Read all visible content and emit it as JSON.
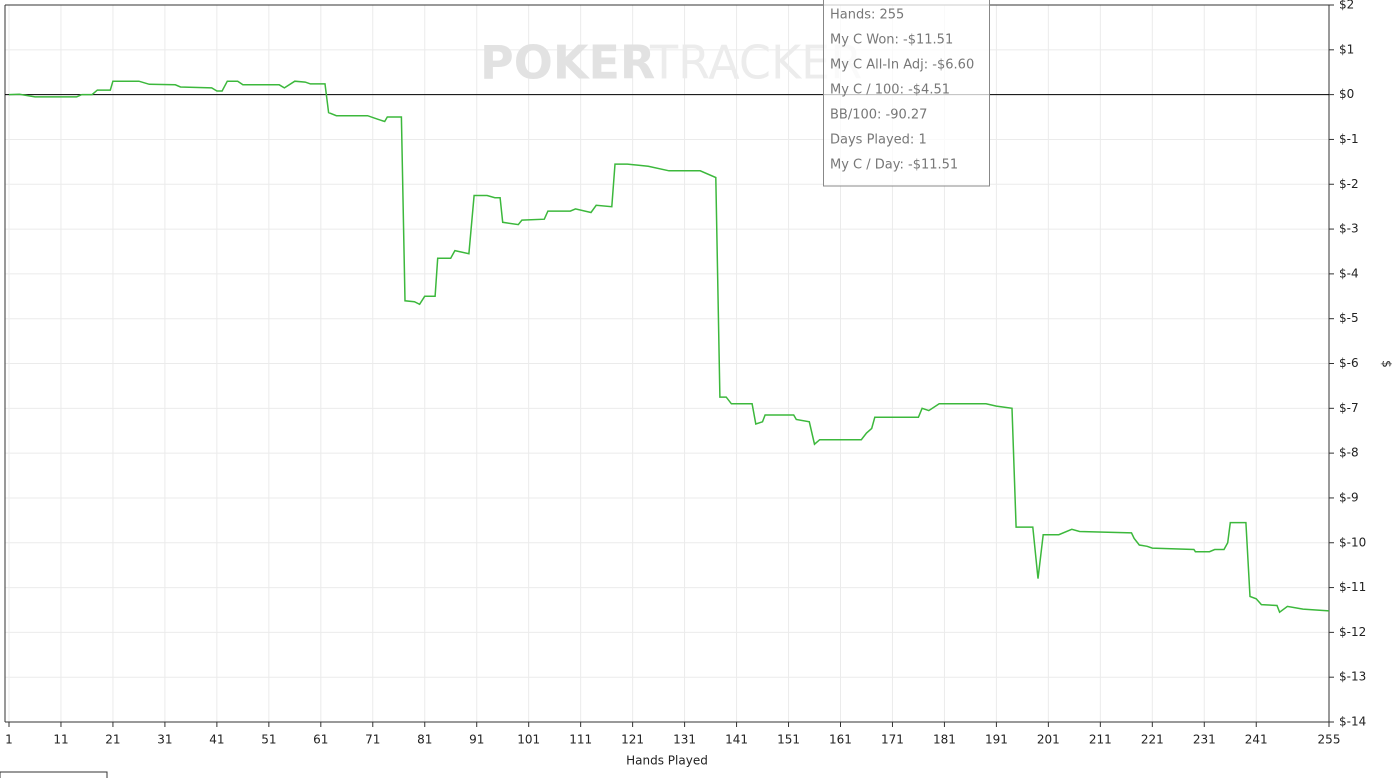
{
  "chart_data": {
    "type": "line",
    "x_label": "Hands Played",
    "y_label": "$",
    "watermark": {
      "bold": "POKER",
      "light": "TRACKER"
    },
    "tooltip": [
      "Hands: 255",
      "My C Won: -$11.51",
      "My C All-In Adj: -$6.60",
      "My C / 100: -$4.51",
      "BB/100: -90.27",
      "Days Played: 1",
      "My C / Day: -$11.51"
    ],
    "color": "#3cb83c",
    "grid": true,
    "zero_line": true,
    "xlim": [
      1,
      255
    ],
    "xticks": [
      1,
      11,
      21,
      31,
      41,
      51,
      61,
      71,
      81,
      91,
      101,
      111,
      121,
      131,
      141,
      151,
      161,
      171,
      181,
      191,
      201,
      211,
      221,
      231,
      241,
      255
    ],
    "ylim": [
      -14,
      2
    ],
    "yticks": [
      {
        "value": 2,
        "label": "$2"
      },
      {
        "value": 1,
        "label": "$1"
      },
      {
        "value": 0,
        "label": "$0"
      },
      {
        "value": -1,
        "label": "$-1"
      },
      {
        "value": -2,
        "label": "$-2"
      },
      {
        "value": -3,
        "label": "$-3"
      },
      {
        "value": -4,
        "label": "$-4"
      },
      {
        "value": -5,
        "label": "$-5"
      },
      {
        "value": -6,
        "label": "$-6"
      },
      {
        "value": -7,
        "label": "$-7"
      },
      {
        "value": -8,
        "label": "$-8"
      },
      {
        "value": -9,
        "label": "$-9"
      },
      {
        "value": -10,
        "label": "$-10"
      },
      {
        "value": -11,
        "label": "$-11"
      },
      {
        "value": -12,
        "label": "$-12"
      },
      {
        "value": -13,
        "label": "$-13"
      },
      {
        "value": -14,
        "label": "$-14"
      }
    ],
    "x": [
      1,
      3,
      6,
      14,
      15,
      17,
      18,
      20.5,
      21,
      26,
      28,
      33,
      34,
      40,
      41,
      42,
      43,
      45,
      46,
      53,
      54,
      56,
      58,
      59,
      61.8,
      62.5,
      64,
      70,
      72,
      73.3,
      73.8,
      76.5,
      77.2,
      79,
      80,
      81,
      83,
      83.5,
      86,
      86.8,
      89.5,
      90.5,
      93,
      94.5,
      95.5,
      96,
      99,
      99.7,
      104,
      104.7,
      109,
      110,
      113,
      114,
      117,
      117.6,
      120,
      124,
      128,
      134,
      137,
      137.8,
      139,
      140,
      144,
      144.7,
      146,
      146.5,
      152,
      152.5,
      155,
      156,
      157,
      165,
      166,
      167,
      167.6,
      176,
      176.7,
      178,
      180,
      189,
      191,
      194,
      194.8,
      198,
      199,
      200,
      203,
      205.5,
      207,
      217,
      217.5,
      218.5,
      220,
      221,
      229,
      229.3,
      232,
      233,
      234.8,
      235.5,
      236,
      239,
      239.8,
      241,
      242,
      245,
      245.5,
      247,
      250,
      255
    ],
    "values": [
      0,
      0.01,
      -0.05,
      -0.05,
      0,
      0,
      0.1,
      0.1,
      0.3,
      0.3,
      0.23,
      0.22,
      0.17,
      0.15,
      0.08,
      0.08,
      0.3,
      0.3,
      0.22,
      0.22,
      0.15,
      0.3,
      0.28,
      0.24,
      0.24,
      -0.4,
      -0.47,
      -0.47,
      -0.55,
      -0.6,
      -0.5,
      -0.5,
      -4.6,
      -4.62,
      -4.68,
      -4.5,
      -4.5,
      -3.65,
      -3.65,
      -3.48,
      -3.55,
      -2.25,
      -2.25,
      -2.3,
      -2.3,
      -2.85,
      -2.9,
      -2.8,
      -2.78,
      -2.6,
      -2.6,
      -2.55,
      -2.63,
      -2.47,
      -2.5,
      -1.55,
      -1.55,
      -1.6,
      -1.7,
      -1.7,
      -1.85,
      -6.75,
      -6.75,
      -6.9,
      -6.9,
      -7.35,
      -7.3,
      -7.15,
      -7.15,
      -7.25,
      -7.3,
      -7.8,
      -7.7,
      -7.7,
      -7.55,
      -7.45,
      -7.2,
      -7.2,
      -7,
      -7.05,
      -6.9,
      -6.9,
      -6.95,
      -7,
      -9.65,
      -9.65,
      -10.8,
      -9.82,
      -9.82,
      -9.7,
      -9.75,
      -9.78,
      -9.9,
      -10.05,
      -10.08,
      -10.12,
      -10.15,
      -10.2,
      -10.2,
      -10.15,
      -10.15,
      -10,
      -9.55,
      -9.55,
      -11.2,
      -11.25,
      -11.38,
      -11.4,
      -11.55,
      -11.42,
      -11.48,
      -11.52
    ]
  }
}
